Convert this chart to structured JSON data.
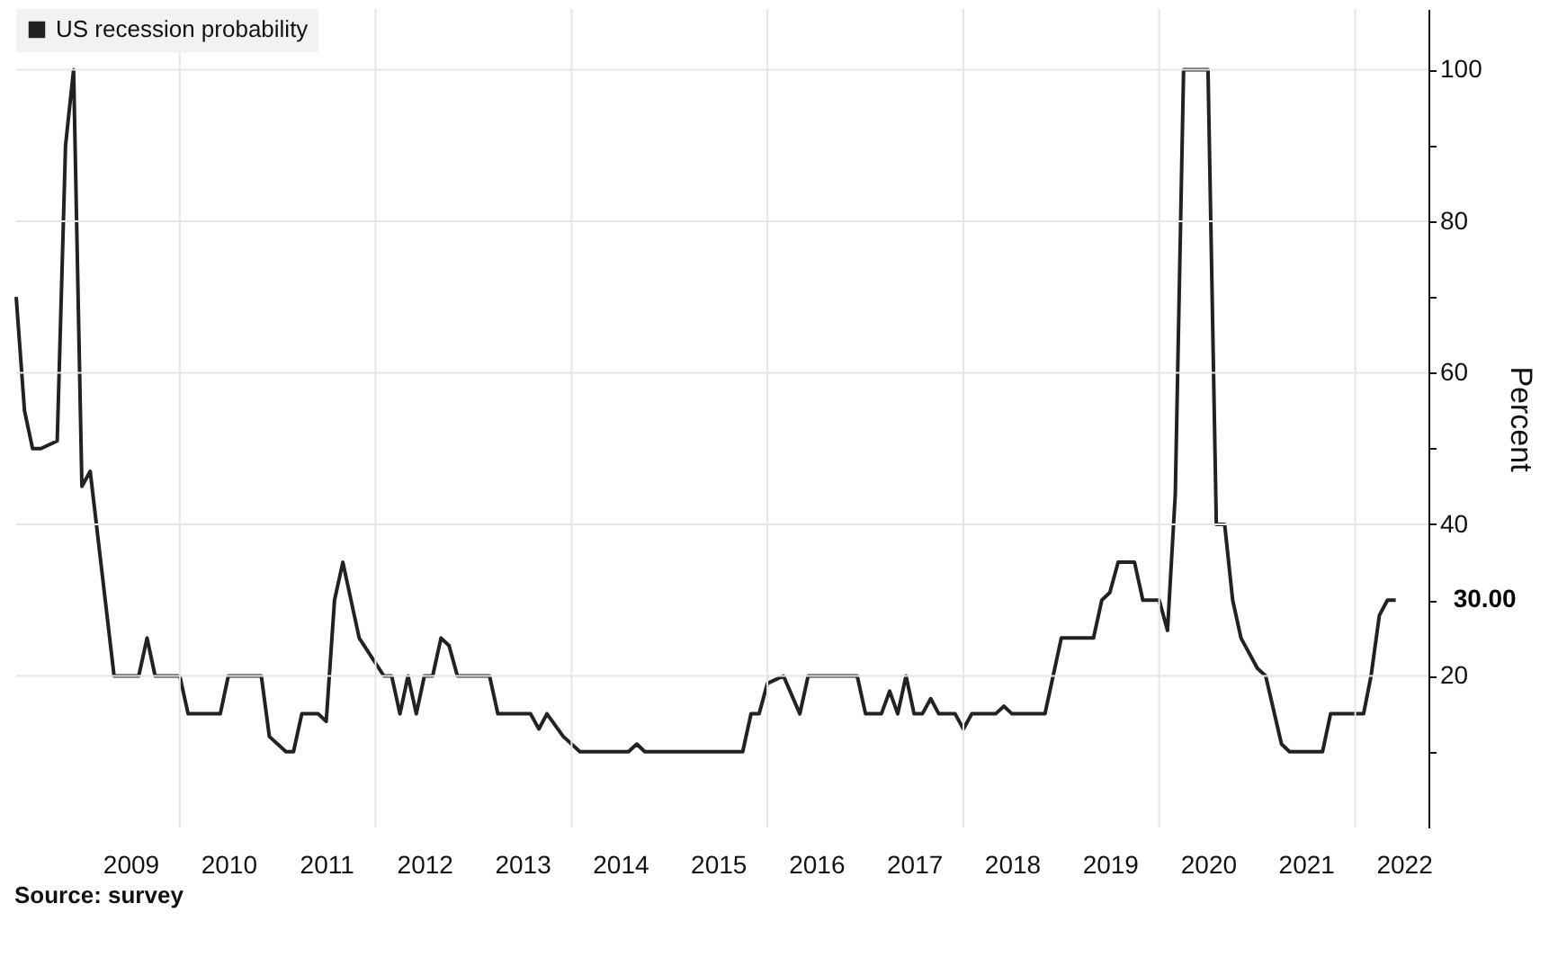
{
  "chart_data": {
    "type": "line",
    "ylabel": "Percent",
    "legend": "top left",
    "grid": true,
    "marker": "none",
    "line_style": "solid",
    "xlim": [
      "2008-05",
      "2022-10"
    ],
    "ylim": [
      0,
      108
    ],
    "xticks": [
      {
        "value": "2010",
        "label": null
      },
      {
        "value": "2012",
        "label": null
      },
      {
        "value": "2014",
        "label": null
      },
      {
        "value": "2016",
        "label": null
      },
      {
        "value": "2018",
        "label": null
      },
      {
        "value": "2020",
        "label": null
      },
      {
        "value": "2022",
        "label": null
      },
      {
        "value": "2009-07",
        "label": "2009"
      },
      {
        "value": "2010-07",
        "label": "2010"
      },
      {
        "value": "2011-07",
        "label": "2011"
      },
      {
        "value": "2012-07",
        "label": "2012"
      },
      {
        "value": "2013-07",
        "label": "2013"
      },
      {
        "value": "2014-07",
        "label": "2014"
      },
      {
        "value": "2015-07",
        "label": "2015"
      },
      {
        "value": "2016-07",
        "label": "2016"
      },
      {
        "value": "2017-07",
        "label": "2017"
      },
      {
        "value": "2018-07",
        "label": "2018"
      },
      {
        "value": "2019-07",
        "label": "2019"
      },
      {
        "value": "2020-07",
        "label": "2020"
      },
      {
        "value": "2021-07",
        "label": "2021"
      },
      {
        "value": "2022-07",
        "label": "2022"
      }
    ],
    "yticks": [
      {
        "value": 10,
        "label": null
      },
      20,
      {
        "value": 30,
        "label": null
      },
      40,
      {
        "value": 50,
        "label": null
      },
      60,
      {
        "value": 70,
        "label": null
      },
      80,
      {
        "value": 90,
        "label": null
      },
      100
    ],
    "x": [
      "2008-05",
      "2008-06",
      "2008-07",
      "2008-08",
      "2008-10",
      "2008-11",
      "2008-12",
      "2009-01",
      "2009-02",
      "2009-05",
      "2009-08",
      "2009-09",
      "2009-10",
      "2010-01",
      "2010-02",
      "2010-06",
      "2010-07",
      "2010-11",
      "2010-12",
      "2011-02",
      "2011-03",
      "2011-04",
      "2011-06",
      "2011-07",
      "2011-08",
      "2011-09",
      "2011-11",
      "2012-02",
      "2012-03",
      "2012-04",
      "2012-05",
      "2012-06",
      "2012-07",
      "2012-08",
      "2012-09",
      "2012-10",
      "2012-11",
      "2013-03",
      "2013-04",
      "2013-08",
      "2013-09",
      "2013-10",
      "2013-12",
      "2014-02",
      "2014-08",
      "2014-09",
      "2014-10",
      "2015-10",
      "2015-11",
      "2015-12",
      "2016-01",
      "2016-03",
      "2016-05",
      "2016-06",
      "2016-12",
      "2017-01",
      "2017-03",
      "2017-04",
      "2017-05",
      "2017-06",
      "2017-07",
      "2017-08",
      "2017-09",
      "2017-10",
      "2017-12",
      "2018-01",
      "2018-02",
      "2018-05",
      "2018-06",
      "2018-07",
      "2018-11",
      "2019-01",
      "2019-05",
      "2019-06",
      "2019-07",
      "2019-08",
      "2019-10",
      "2019-11",
      "2020-01",
      "2020-02",
      "2020-03",
      "2020-04",
      "2020-07",
      "2020-08",
      "2020-09",
      "2020-10",
      "2020-11",
      "2021-01",
      "2021-02",
      "2021-04",
      "2021-05",
      "2021-09",
      "2021-10",
      "2022-02",
      "2022-03",
      "2022-04",
      "2022-05",
      "2022-06"
    ],
    "series": [
      {
        "name": "US recession probability",
        "color": "#222222",
        "values": [
          70,
          55,
          50,
          50,
          51,
          90,
          100,
          45,
          47,
          20,
          20,
          25,
          20,
          20,
          15,
          15,
          20,
          20,
          12,
          10,
          10,
          15,
          15,
          14,
          30,
          35,
          25,
          20,
          20,
          15,
          20,
          15,
          20,
          20,
          25,
          24,
          20,
          20,
          15,
          15,
          13,
          15,
          12,
          10,
          10,
          11,
          10,
          10,
          15,
          15,
          19,
          20,
          15,
          20,
          20,
          15,
          15,
          18,
          15,
          20,
          15,
          15,
          17,
          15,
          15,
          13,
          15,
          15,
          16,
          15,
          15,
          25,
          25,
          30,
          31,
          35,
          35,
          30,
          30,
          26,
          44,
          100,
          100,
          40,
          40,
          30,
          25,
          21,
          20,
          11,
          10,
          10,
          15,
          15,
          20,
          28,
          30,
          30
        ]
      }
    ],
    "annotations": [
      {
        "text": "30.00",
        "x": "2022-06",
        "y": 30
      },
      "Source: survey"
    ]
  }
}
